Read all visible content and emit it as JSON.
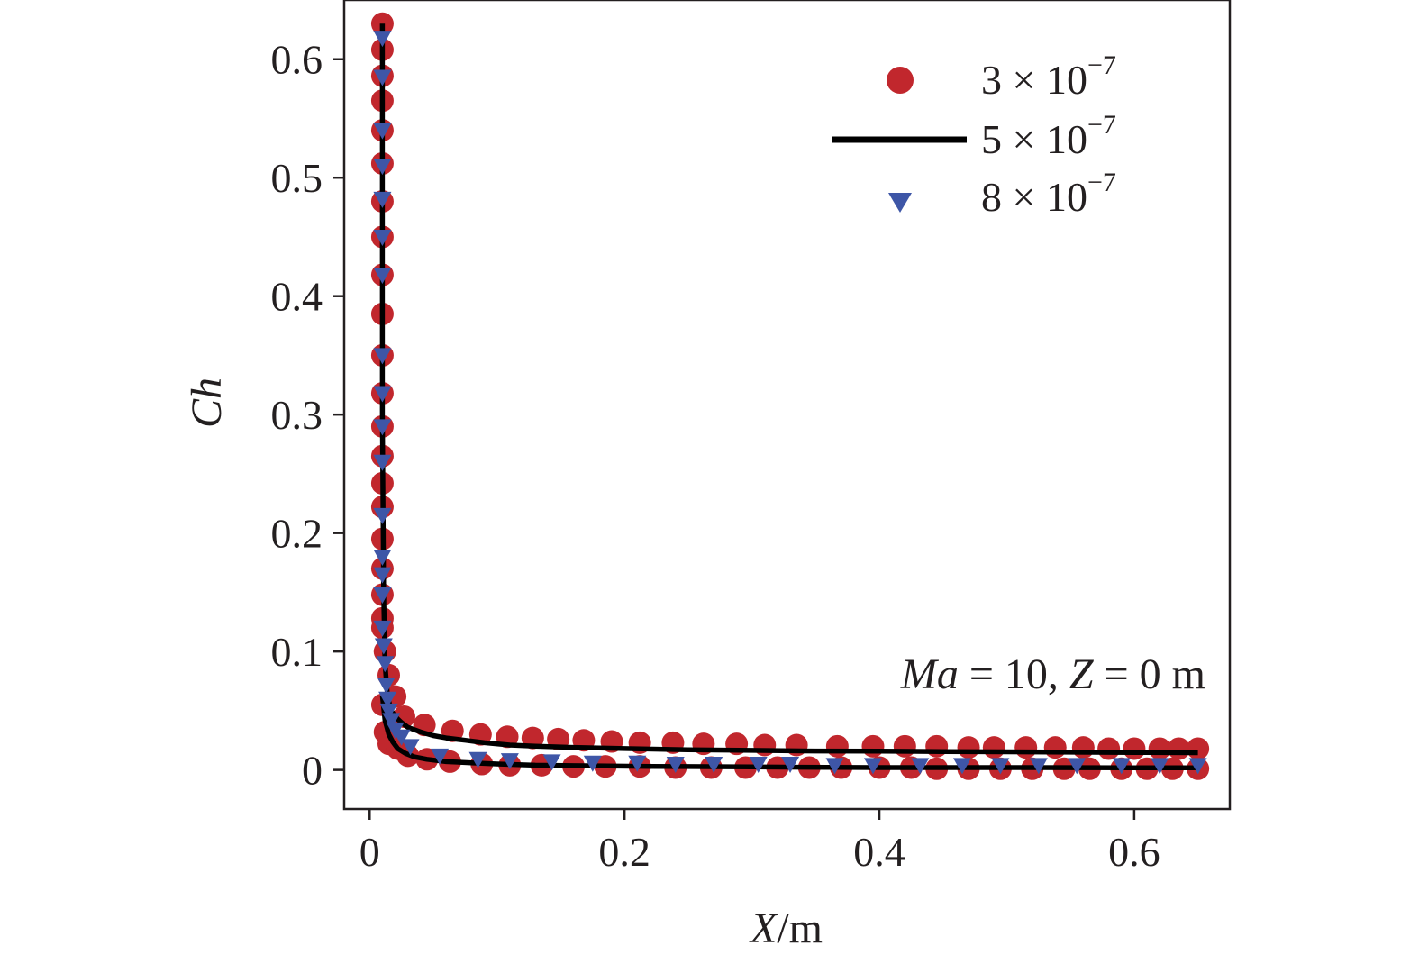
{
  "chart_data": {
    "type": "scatter",
    "xlabel": {
      "italic": "X",
      "rest": "/m"
    },
    "ylabel": "Ch",
    "xlim": [
      -0.02,
      0.675
    ],
    "ylim": [
      -0.033,
      0.65
    ],
    "xticks": [
      0,
      0.2,
      0.4,
      0.6
    ],
    "xtick_labels": [
      "0",
      "0.2",
      "0.4",
      "0.6"
    ],
    "yticks": [
      0,
      0.1,
      0.2,
      0.3,
      0.4,
      0.5,
      0.6
    ],
    "ytick_labels": [
      "0",
      "0.1",
      "0.2",
      "0.3",
      "0.4",
      "0.5",
      "0.6"
    ],
    "grid": false,
    "legend_position": "top-right",
    "annotation": {
      "italic1": "Ma",
      "mid": " = 10, ",
      "italic2": "Z",
      "end": " = 0 m"
    },
    "series": [
      {
        "name": "3 × 10⁻⁷",
        "legend_base": "3 × 10",
        "legend_exp": "−7",
        "style": "circle",
        "color": "#c1272d",
        "upper": {
          "x": [
            0.01,
            0.01,
            0.01,
            0.01,
            0.01,
            0.01,
            0.01,
            0.01,
            0.01,
            0.01,
            0.01,
            0.01,
            0.01,
            0.01,
            0.01,
            0.01,
            0.01,
            0.01,
            0.01,
            0.01,
            0.01,
            0.012,
            0.015,
            0.02,
            0.027,
            0.043,
            0.065,
            0.087,
            0.108,
            0.128,
            0.148,
            0.168,
            0.19,
            0.212,
            0.238,
            0.262,
            0.288,
            0.31,
            0.335,
            0.367,
            0.395,
            0.42,
            0.445,
            0.47,
            0.49,
            0.515,
            0.538,
            0.56,
            0.58,
            0.6,
            0.62,
            0.635,
            0.65
          ],
          "y": [
            0.63,
            0.608,
            0.586,
            0.565,
            0.54,
            0.512,
            0.48,
            0.45,
            0.418,
            0.385,
            0.35,
            0.318,
            0.29,
            0.265,
            0.242,
            0.222,
            0.195,
            0.17,
            0.148,
            0.128,
            0.12,
            0.1,
            0.08,
            0.062,
            0.045,
            0.038,
            0.033,
            0.03,
            0.028,
            0.027,
            0.026,
            0.025,
            0.024,
            0.023,
            0.023,
            0.022,
            0.022,
            0.021,
            0.021,
            0.02,
            0.02,
            0.02,
            0.02,
            0.019,
            0.019,
            0.019,
            0.019,
            0.019,
            0.018,
            0.018,
            0.018,
            0.018,
            0.018
          ]
        },
        "lower": {
          "x": [
            0.01,
            0.012,
            0.015,
            0.022,
            0.03,
            0.045,
            0.063,
            0.088,
            0.11,
            0.135,
            0.16,
            0.185,
            0.212,
            0.24,
            0.268,
            0.295,
            0.32,
            0.345,
            0.37,
            0.4,
            0.425,
            0.445,
            0.47,
            0.495,
            0.52,
            0.545,
            0.565,
            0.59,
            0.61,
            0.63,
            0.65
          ],
          "y": [
            0.055,
            0.032,
            0.022,
            0.018,
            0.012,
            0.009,
            0.007,
            0.005,
            0.004,
            0.004,
            0.003,
            0.003,
            0.003,
            0.002,
            0.002,
            0.002,
            0.002,
            0.002,
            0.002,
            0.002,
            0.002,
            0.001,
            0.001,
            0.001,
            0.001,
            0.001,
            0.001,
            0.001,
            0.001,
            0.001,
            0.001
          ]
        }
      },
      {
        "name": "5 × 10⁻⁷",
        "legend_base": "5 × 10",
        "legend_exp": "−7",
        "style": "line",
        "color": "#000000",
        "upper": {
          "x": [
            0.01,
            0.01,
            0.011,
            0.012,
            0.014,
            0.017,
            0.02,
            0.025,
            0.03,
            0.04,
            0.05,
            0.06,
            0.075,
            0.09,
            0.11,
            0.13,
            0.16,
            0.2,
            0.25,
            0.3,
            0.35,
            0.4,
            0.45,
            0.5,
            0.55,
            0.6,
            0.65
          ],
          "y": [
            0.63,
            0.3,
            0.15,
            0.09,
            0.062,
            0.05,
            0.045,
            0.04,
            0.036,
            0.032,
            0.029,
            0.027,
            0.025,
            0.023,
            0.021,
            0.02,
            0.019,
            0.018,
            0.017,
            0.0165,
            0.016,
            0.0158,
            0.0155,
            0.0153,
            0.015,
            0.0148,
            0.0145
          ]
        },
        "lower": {
          "x": [
            0.01,
            0.012,
            0.015,
            0.018,
            0.022,
            0.028,
            0.035,
            0.045,
            0.06,
            0.08,
            0.1,
            0.13,
            0.17,
            0.22,
            0.3,
            0.4,
            0.5,
            0.6,
            0.65
          ],
          "y": [
            0.063,
            0.042,
            0.03,
            0.024,
            0.018,
            0.014,
            0.011,
            0.009,
            0.007,
            0.006,
            0.005,
            0.004,
            0.0035,
            0.003,
            0.0025,
            0.002,
            0.002,
            0.0018,
            0.0018
          ]
        }
      },
      {
        "name": "8 × 10⁻⁷",
        "legend_base": "8 × 10",
        "legend_exp": "−7",
        "style": "triangle-down",
        "color": "#3e56a7",
        "points": {
          "x": [
            0.01,
            0.01,
            0.01,
            0.01,
            0.01,
            0.01,
            0.01,
            0.01,
            0.01,
            0.01,
            0.01,
            0.01,
            0.01,
            0.01,
            0.01,
            0.01,
            0.011,
            0.012,
            0.013,
            0.014,
            0.015,
            0.017,
            0.02,
            0.025,
            0.032,
            0.055,
            0.085,
            0.11,
            0.143,
            0.175,
            0.21,
            0.24,
            0.27,
            0.305,
            0.33,
            0.365,
            0.395,
            0.432,
            0.465,
            0.495,
            0.525,
            0.555,
            0.59,
            0.62,
            0.65
          ],
          "y": [
            0.618,
            0.585,
            0.54,
            0.51,
            0.482,
            0.45,
            0.418,
            0.35,
            0.318,
            0.29,
            0.26,
            0.215,
            0.18,
            0.165,
            0.148,
            0.12,
            0.105,
            0.09,
            0.072,
            0.06,
            0.05,
            0.042,
            0.034,
            0.028,
            0.02,
            0.012,
            0.009,
            0.008,
            0.007,
            0.006,
            0.006,
            0.005,
            0.005,
            0.005,
            0.005,
            0.004,
            0.004,
            0.004,
            0.004,
            0.004,
            0.004,
            0.004,
            0.004,
            0.004,
            0.004
          ]
        }
      }
    ]
  }
}
